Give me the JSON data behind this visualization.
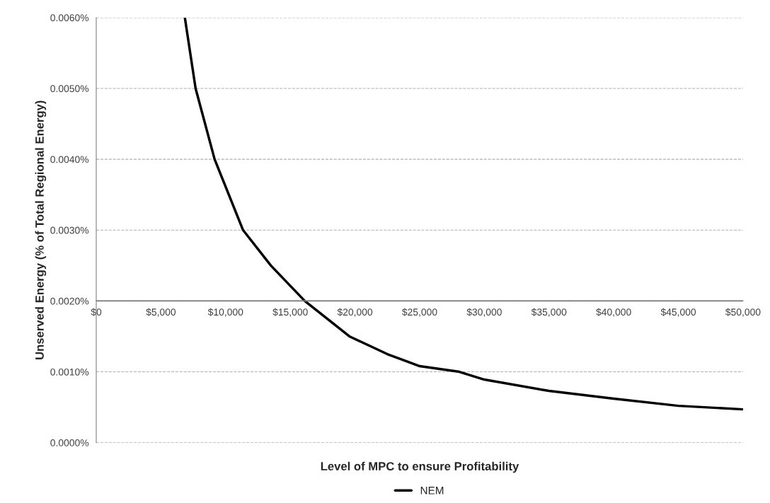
{
  "chart_data": {
    "type": "line",
    "xlabel": "Level of MPC to ensure Profitability",
    "ylabel": "Unserved Energy (% of Total Regional Energy)",
    "series": [
      {
        "name": "NEM",
        "color": "#000000",
        "x": [
          6850,
          7680,
          9150,
          11350,
          13500,
          16118,
          19570,
          22500,
          25000,
          28070,
          30000,
          35000,
          40000,
          45000,
          50000
        ],
        "values": [
          0.006,
          0.005,
          0.004,
          0.003,
          0.0025,
          0.002,
          0.0015,
          0.00125,
          0.00108,
          0.001,
          0.00089,
          0.00073,
          0.00062,
          0.00052,
          0.00047
        ]
      }
    ],
    "xlim": [
      0,
      50000
    ],
    "xticks": [
      {
        "value": 0,
        "label": "$0"
      },
      {
        "value": 5000,
        "label": "$5,000"
      },
      {
        "value": 10000,
        "label": "$10,000"
      },
      {
        "value": 15000,
        "label": "$15,000"
      },
      {
        "value": 20000,
        "label": "$20,000"
      },
      {
        "value": 25000,
        "label": "$25,000"
      },
      {
        "value": 30000,
        "label": "$30,000"
      },
      {
        "value": 35000,
        "label": "$35,000"
      },
      {
        "value": 40000,
        "label": "$40,000"
      },
      {
        "value": 45000,
        "label": "$45,000"
      },
      {
        "value": 50000,
        "label": "$50,000"
      }
    ],
    "ylim": [
      0,
      0.006
    ],
    "yticks": [
      {
        "value": 0,
        "label": "0.0000%"
      },
      {
        "value": 0.001,
        "label": "0.0010%"
      },
      {
        "value": 0.002,
        "label": "0.0020%"
      },
      {
        "value": 0.003,
        "label": "0.0030%"
      },
      {
        "value": 0.004,
        "label": "0.0040%"
      },
      {
        "value": 0.005,
        "label": "0.0050%"
      },
      {
        "value": 0.006,
        "label": "0.0060%"
      }
    ],
    "ref_lines": [
      {
        "axis": "y",
        "value": 0.002,
        "color": "#808080"
      }
    ],
    "grid": "y",
    "legend": "bottom",
    "line_style": "solid",
    "marker": "none"
  }
}
